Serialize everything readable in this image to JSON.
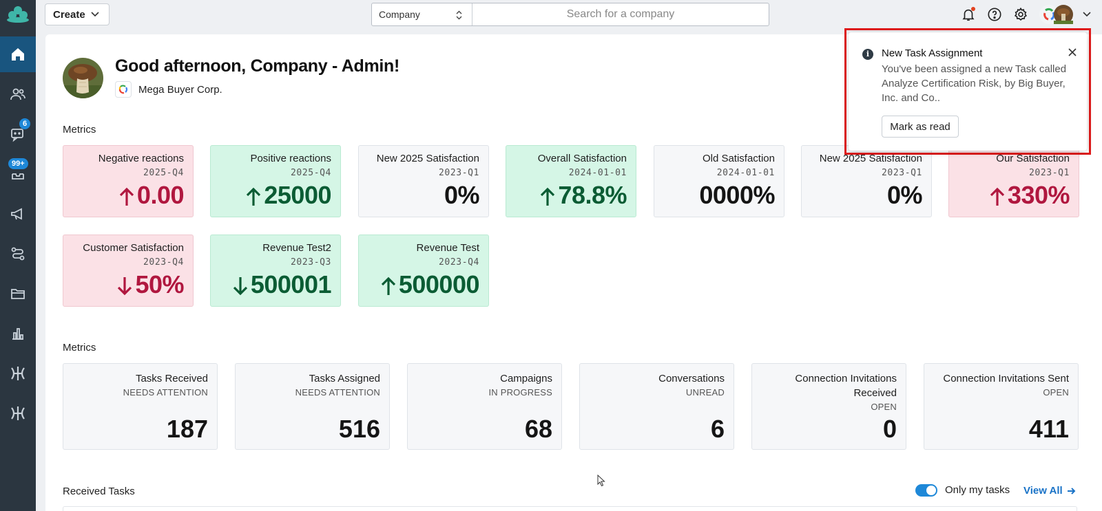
{
  "header": {
    "create_label": "Create",
    "search_scope": "Company",
    "search_placeholder": "Search for a company"
  },
  "sidebar": {
    "items": [
      {
        "name": "home",
        "badge": ""
      },
      {
        "name": "users",
        "badge": ""
      },
      {
        "name": "conversations",
        "badge": "6"
      },
      {
        "name": "inbox",
        "badge": "99+"
      },
      {
        "name": "campaigns",
        "badge": ""
      },
      {
        "name": "workflows",
        "badge": ""
      },
      {
        "name": "folders",
        "badge": ""
      },
      {
        "name": "analytics",
        "badge": ""
      },
      {
        "name": "app-1",
        "badge": ""
      },
      {
        "name": "app-2",
        "badge": ""
      }
    ]
  },
  "greeting": {
    "text": "Good afternoon, Company - Admin!",
    "company": "Mega Buyer Corp."
  },
  "metrics_section_title": "Metrics",
  "metric_cards": [
    {
      "title": "Negative reactions",
      "date": "2025-Q4",
      "value": "0.00",
      "trend": "up",
      "tone": "neg"
    },
    {
      "title": "Positive reactions",
      "date": "2025-Q4",
      "value": "25000",
      "trend": "up",
      "tone": "pos"
    },
    {
      "title": "New 2025 Satisfaction",
      "date": "2023-Q1",
      "value": "0%",
      "trend": "",
      "tone": "neutral"
    },
    {
      "title": "Overall Satisfaction",
      "date": "2024-01-01",
      "value": "78.8%",
      "trend": "up",
      "tone": "pos"
    },
    {
      "title": "Old Satisfaction",
      "date": "2024-01-01",
      "value": "0000%",
      "trend": "",
      "tone": "neutral"
    },
    {
      "title": "New 2025 Satisfaction",
      "date": "2023-Q1",
      "value": "0%",
      "trend": "",
      "tone": "neutral"
    },
    {
      "title": "Our Satisfaction",
      "date": "2023-Q1",
      "value": "330%",
      "trend": "up",
      "tone": "neg"
    },
    {
      "title": "Customer Satisfaction",
      "date": "2023-Q4",
      "value": "50%",
      "trend": "down",
      "tone": "neg"
    },
    {
      "title": "Revenue Test2",
      "date": "2023-Q3",
      "value": "500001",
      "trend": "down",
      "tone": "pos"
    },
    {
      "title": "Revenue Test",
      "date": "2023-Q4",
      "value": "500000",
      "trend": "up",
      "tone": "pos"
    }
  ],
  "stats_section_title": "Metrics",
  "stat_cards": [
    {
      "title": "Tasks Received",
      "sub": "NEEDS ATTENTION",
      "value": "187"
    },
    {
      "title": "Tasks Assigned",
      "sub": "NEEDS ATTENTION",
      "value": "516"
    },
    {
      "title": "Campaigns",
      "sub": "IN PROGRESS",
      "value": "68"
    },
    {
      "title": "Conversations",
      "sub": "UNREAD",
      "value": "6"
    },
    {
      "title": "Connection Invitations Received",
      "sub": "OPEN",
      "value": "0"
    },
    {
      "title": "Connection Invitations Sent",
      "sub": "OPEN",
      "value": "411"
    }
  ],
  "received_tasks": {
    "title": "Received Tasks",
    "toggle_label": "Only my tasks",
    "view_all": "View All"
  },
  "toast": {
    "title": "New Task Assignment",
    "body": "You've been assigned a new Task called Analyze Certification Risk, by Big Buyer, Inc. and Co..",
    "action": "Mark as read"
  },
  "colors": {
    "sidebar": "#2b3640",
    "accent": "#1e88d8",
    "negative": "#b0173f",
    "positive": "#0b5c34"
  }
}
